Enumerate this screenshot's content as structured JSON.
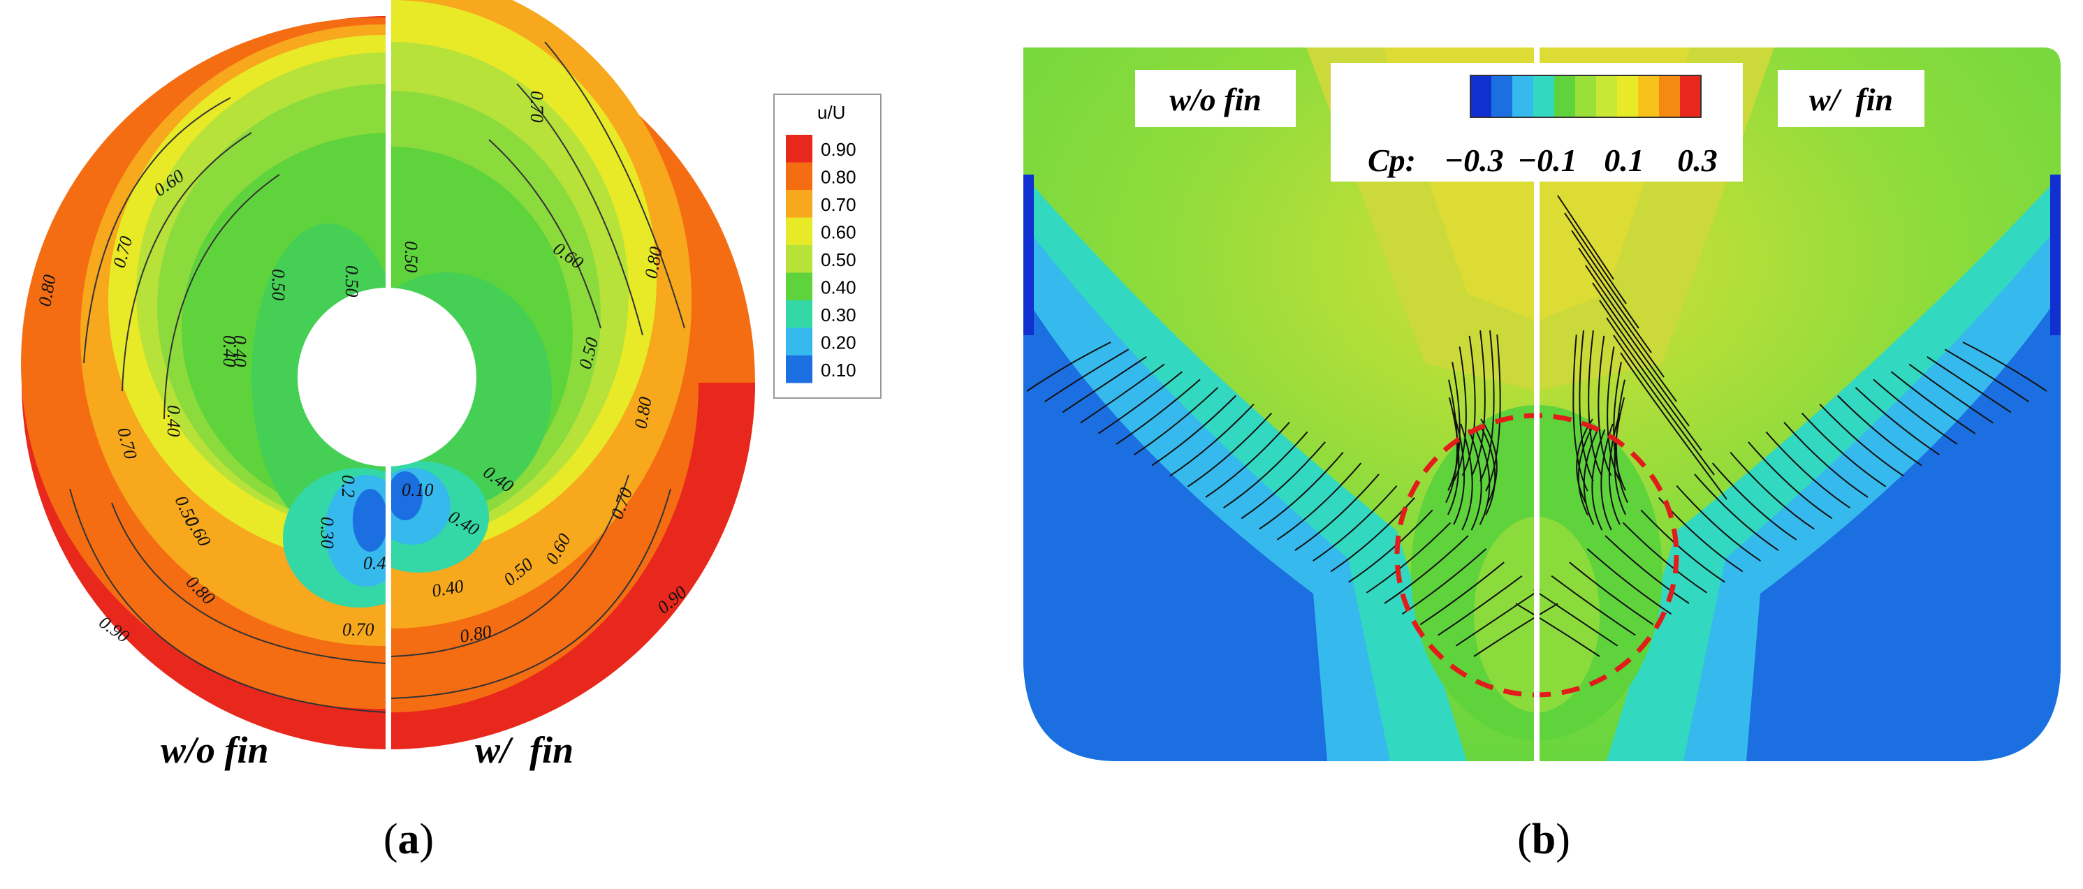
{
  "panel_a": {
    "label_open": "(",
    "label_letter": "a",
    "label_close": ")",
    "left_caption": "w/o fin",
    "right_caption": "w/  fin",
    "legend": {
      "title": "u/U",
      "levels": [
        "0.90",
        "0.80",
        "0.70",
        "0.60",
        "0.50",
        "0.40",
        "0.30",
        "0.20",
        "0.10"
      ],
      "colors": [
        "#e8281c",
        "#f56d12",
        "#f7a81c",
        "#e9ea27",
        "#b6e23a",
        "#5fd33c",
        "#33d8a6",
        "#36b9ec",
        "#1b6fe0",
        "#1030d0"
      ]
    },
    "contour_labels_left": [
      "0.60",
      "0.80",
      "0.70",
      "0.50",
      "0.50",
      "0.40",
      "0.40",
      "0.40",
      "0.70",
      "0.50",
      "0.60",
      "0.80",
      "0.90",
      "0.30",
      "0.4",
      "0.70",
      "0.2"
    ],
    "contour_labels_right": [
      "0.70",
      "0.50",
      "0.60",
      "0.80",
      "0.80",
      "0.50",
      "0.40",
      "0.10",
      "0.40",
      "0.70",
      "0.60",
      "0.50",
      "0.40",
      "0.80",
      "0.90"
    ]
  },
  "panel_b": {
    "label_open": "(",
    "label_letter": "b",
    "label_close": ")",
    "left_caption": "w/o fin",
    "right_caption": "w/  fin",
    "colorbar": {
      "title": "Cp:",
      "ticks": [
        "−0.3",
        "−0.1",
        "0.1",
        "0.3"
      ],
      "colors": [
        "#1030d0",
        "#1b6fe0",
        "#36b9ec",
        "#33d8c0",
        "#5fd33c",
        "#9be03a",
        "#c9e836",
        "#e9ea27",
        "#f7c21c",
        "#f58a12",
        "#e8281c"
      ]
    }
  }
}
